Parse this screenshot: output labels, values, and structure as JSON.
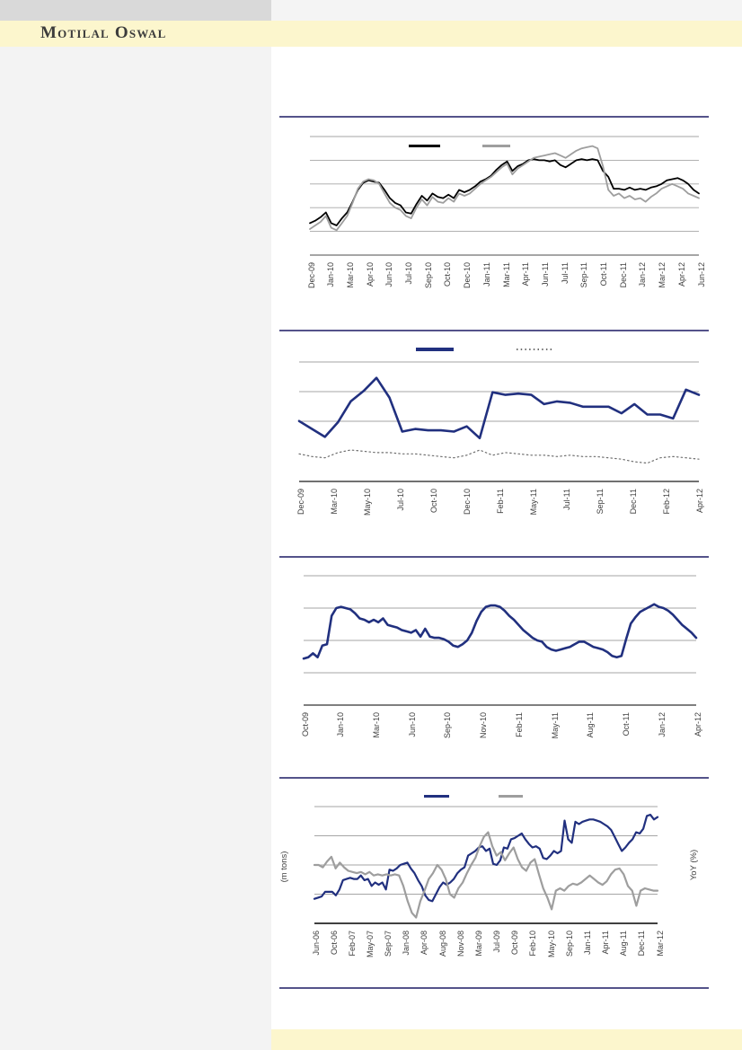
{
  "header": {
    "brand": "Motilal Oswal"
  },
  "colors": {
    "separator_navy": "#1c1a63",
    "series_navy": "#21307f",
    "series_black": "#000000",
    "series_gray": "#9e9e9e",
    "dotted_gray": "#6e6e6e",
    "gridline": "#a6a6a6",
    "band_yellow": "#fcf6cd",
    "topbar_gray": "#d9d9d9",
    "left_panel_gray": "#f3f3f3"
  },
  "chart_data": [
    {
      "type": "line",
      "title": "",
      "xlabel": "",
      "ylabel": "",
      "axis_note": "No y-axis tick labels visible; series values given as percent of plot height above the x-axis (relative units).",
      "grid": true,
      "legend_position": "top-center",
      "legend": [
        {
          "label": "",
          "color": "#000000",
          "style": "solid"
        },
        {
          "label": "",
          "color": "#9e9e9e",
          "style": "solid"
        }
      ],
      "x_ticks": [
        "Dec-09",
        "Jan-10",
        "Mar-10",
        "Apr-10",
        "Jun-10",
        "Jul-10",
        "Sep-10",
        "Oct-10",
        "Dec-10",
        "Jan-11",
        "Mar-11",
        "Apr-11",
        "Jun-11",
        "Jul-11",
        "Sep-11",
        "Oct-11",
        "Dec-11",
        "Jan-12",
        "Mar-12",
        "Apr-12",
        "Jun-12"
      ],
      "series": [
        {
          "name": "black-line",
          "color": "#000000",
          "style": "solid",
          "values": [
            27,
            29,
            32,
            36,
            27,
            25,
            31,
            36,
            45,
            55,
            61,
            63,
            62,
            61,
            55,
            48,
            44,
            42,
            36,
            35,
            43,
            50,
            46,
            52,
            49,
            48,
            51,
            48,
            55,
            53,
            55,
            58,
            62,
            64,
            67,
            72,
            76,
            79,
            71,
            75,
            77,
            80,
            81,
            80,
            80,
            79,
            80,
            76,
            74,
            77,
            80,
            81,
            80,
            81,
            80,
            71,
            66,
            56,
            56,
            55,
            57,
            55,
            56,
            55,
            57,
            58,
            60,
            63,
            64,
            65,
            63,
            60,
            55,
            52
          ]
        },
        {
          "name": "gray-line",
          "color": "#9e9e9e",
          "style": "solid",
          "values": [
            22,
            25,
            28,
            33,
            23,
            21,
            27,
            33,
            44,
            56,
            62,
            64,
            63,
            60,
            52,
            44,
            40,
            38,
            33,
            31,
            40,
            47,
            42,
            49,
            45,
            44,
            48,
            45,
            52,
            50,
            52,
            56,
            60,
            63,
            66,
            70,
            74,
            77,
            68,
            73,
            76,
            79,
            82,
            83,
            84,
            85,
            86,
            84,
            82,
            85,
            88,
            90,
            91,
            92,
            90,
            75,
            55,
            50,
            52,
            48,
            50,
            47,
            48,
            45,
            49,
            52,
            56,
            58,
            60,
            58,
            56,
            52,
            50,
            48
          ]
        }
      ]
    },
    {
      "type": "line",
      "title": "",
      "xlabel": "",
      "ylabel": "",
      "axis_note": "No y-axis tick labels visible; series values given as percent of plot height above the x-axis (relative units).",
      "grid": true,
      "legend_position": "top-center",
      "legend": [
        {
          "label": "",
          "color": "#21307f",
          "style": "solid"
        },
        {
          "label": "",
          "color": "#6e6e6e",
          "style": "dotted"
        }
      ],
      "x_ticks": [
        "Dec-09",
        "Mar-10",
        "May-10",
        "Jul-10",
        "Oct-10",
        "Dec-10",
        "Feb-11",
        "May-11",
        "Jul-11",
        "Sep-11",
        "Dec-11",
        "Feb-12",
        "Apr-12"
      ],
      "series": [
        {
          "name": "navy-solid-line",
          "color": "#21307f",
          "style": "solid",
          "values": [
            46,
            40,
            34,
            45,
            61,
            69,
            79,
            64,
            38,
            40,
            39,
            39,
            38,
            42,
            33,
            68,
            66,
            67,
            66,
            59,
            61,
            60,
            57,
            57,
            57,
            52,
            59,
            51,
            51,
            48,
            70,
            66
          ]
        },
        {
          "name": "gray-dotted-line",
          "color": "#6e6e6e",
          "style": "dotted",
          "values": [
            21,
            19,
            18,
            22,
            24,
            23,
            22,
            22,
            21,
            21,
            20,
            19,
            18,
            20,
            24,
            20,
            22,
            21,
            20,
            20,
            19,
            20,
            19,
            19,
            18,
            17,
            15,
            14,
            18,
            19,
            18,
            17
          ]
        }
      ]
    },
    {
      "type": "line",
      "title": "",
      "xlabel": "",
      "ylabel": "",
      "axis_note": "No y-axis tick labels visible; series values given as percent of plot height above the x-axis (relative units).",
      "grid": true,
      "legend_position": "none",
      "legend": [],
      "x_ticks": [
        "Oct-09",
        "Jan-10",
        "Mar-10",
        "Jun-10",
        "Sep-10",
        "Nov-10",
        "Feb-11",
        "May-11",
        "Aug-11",
        "Oct-11",
        "Jan-12",
        "Apr-12"
      ],
      "series": [
        {
          "name": "navy-line",
          "color": "#21307f",
          "style": "solid",
          "values": [
            36,
            37,
            40,
            37,
            46,
            47,
            69,
            75,
            76,
            75,
            74,
            71,
            67,
            66,
            64,
            66,
            64,
            67,
            62,
            61,
            60,
            58,
            57,
            56,
            58,
            53,
            59,
            53,
            52,
            52,
            51,
            49,
            46,
            45,
            47,
            50,
            56,
            65,
            72,
            76,
            77,
            77,
            76,
            73,
            69,
            66,
            62,
            58,
            55,
            52,
            50,
            49,
            45,
            43,
            42,
            43,
            44,
            45,
            47,
            49,
            49,
            47,
            45,
            44,
            43,
            41,
            38,
            37,
            38,
            51,
            63,
            68,
            72,
            74,
            76,
            78,
            76,
            75,
            73,
            70,
            66,
            62,
            59,
            56,
            52
          ]
        }
      ]
    },
    {
      "type": "line",
      "title": "",
      "xlabel": "",
      "ylabel_left": "(m tons)",
      "ylabel_right": "YoY (%)",
      "axis_note": "Dual-axis chart; left axis '(m tons)', right axis 'YoY (%)'. No numeric tick labels visible; values given as percent of plot height above the x-axis (relative units).",
      "grid": true,
      "legend_position": "top-center",
      "legend": [
        {
          "label": "",
          "color": "#21307f",
          "style": "solid"
        },
        {
          "label": "",
          "color": "#9e9e9e",
          "style": "solid"
        }
      ],
      "x_ticks": [
        "Jun-06",
        "Oct-06",
        "Feb-07",
        "May-07",
        "Sep-07",
        "Jan-08",
        "Apr-08",
        "Aug-08",
        "Nov-08",
        "Mar-09",
        "Jul-09",
        "Oct-09",
        "Feb-10",
        "May-10",
        "Sep-10",
        "Jan-11",
        "Apr-11",
        "Aug-11",
        "Dec-11",
        "Mar-12"
      ],
      "series": [
        {
          "name": "navy-line-m-tons",
          "color": "#21307f",
          "style": "solid",
          "values": [
            21,
            22,
            23,
            27,
            27,
            27,
            24,
            29,
            37,
            38,
            39,
            38,
            38,
            41,
            37,
            38,
            32,
            35,
            33,
            35,
            29,
            46,
            45,
            47,
            50,
            51,
            52,
            47,
            43,
            37,
            32,
            24,
            20,
            19,
            25,
            31,
            35,
            33,
            35,
            38,
            43,
            46,
            48,
            58,
            60,
            62,
            65,
            66,
            62,
            64,
            51,
            50,
            54,
            65,
            64,
            72,
            73,
            75,
            77,
            72,
            68,
            65,
            66,
            64,
            56,
            55,
            58,
            62,
            60,
            62,
            88,
            72,
            69,
            87,
            85,
            87,
            88,
            89,
            89,
            88,
            87,
            85,
            83,
            80,
            74,
            68,
            62,
            65,
            69,
            72,
            78,
            77,
            81,
            92,
            93,
            89,
            91
          ]
        },
        {
          "name": "gray-line-yoy-pct",
          "color": "#9e9e9e",
          "style": "solid",
          "values": [
            50,
            50,
            48,
            53,
            57,
            47,
            52,
            48,
            45,
            44,
            43,
            44,
            42,
            44,
            41,
            42,
            41,
            42,
            41,
            42,
            41,
            32,
            19,
            9,
            5,
            19,
            28,
            38,
            43,
            50,
            46,
            38,
            25,
            22,
            30,
            35,
            43,
            50,
            56,
            66,
            74,
            78,
            66,
            58,
            61,
            54,
            60,
            65,
            55,
            48,
            45,
            52,
            55,
            42,
            30,
            22,
            12,
            28,
            30,
            28,
            32,
            34,
            33,
            35,
            38,
            41,
            38,
            35,
            33,
            36,
            42,
            46,
            47,
            42,
            32,
            28,
            15,
            28,
            30,
            29,
            28,
            28
          ]
        }
      ]
    }
  ]
}
